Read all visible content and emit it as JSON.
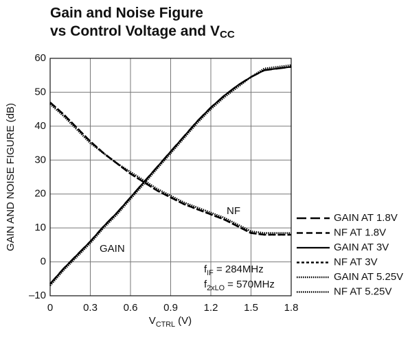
{
  "chart_data": {
    "type": "line",
    "title": "Gain and Noise Figure",
    "subtitle": {
      "text": "vs Control Voltage and V",
      "sub": "CC"
    },
    "x_label": {
      "text": "V",
      "sub": "CTRL",
      "rest": " (V)"
    },
    "y_label": "GAIN AND NOISE FIGURE (dB)",
    "annotations": [
      {
        "text": "GAIN"
      },
      {
        "text": "NF"
      },
      {
        "text": "f",
        "sub": "IF",
        "rest": " = 284MHz"
      },
      {
        "text": "f",
        "sub": "2xLO",
        "rest": " = 570MHz"
      }
    ],
    "x": [
      0,
      0.1,
      0.2,
      0.3,
      0.4,
      0.5,
      0.6,
      0.7,
      0.8,
      0.9,
      1.0,
      1.1,
      1.2,
      1.3,
      1.4,
      1.5,
      1.6,
      1.7,
      1.8
    ],
    "series": [
      {
        "name": "GAIN AT 1.8V",
        "color": "#000000",
        "style": "longdash",
        "values": [
          -6.5,
          -2,
          2,
          6,
          10.5,
          14.5,
          19,
          23.5,
          28,
          32.5,
          37,
          41.5,
          45.5,
          49,
          52,
          54.5,
          56.5,
          57,
          57.5
        ]
      },
      {
        "name": "NF AT 1.8V",
        "color": "#000000",
        "style": "dash",
        "values": [
          47,
          43.5,
          39.5,
          35.5,
          32,
          29,
          26,
          23.5,
          21,
          19,
          17,
          15.5,
          14,
          12.5,
          10.5,
          8.5,
          8,
          8,
          8
        ]
      },
      {
        "name": "GAIN AT 3V",
        "color": "#000000",
        "style": "solid",
        "values": [
          -6.5,
          -2,
          2,
          6,
          10.5,
          14.5,
          19,
          23.5,
          28,
          32.5,
          37,
          41.5,
          45.5,
          49,
          52,
          54.5,
          56.5,
          57,
          57.5
        ]
      },
      {
        "name": "NF AT 3V",
        "color": "#000000",
        "style": "shortdash",
        "values": [
          47,
          43.5,
          39.5,
          35.5,
          32,
          29,
          26,
          23.5,
          21,
          19,
          17,
          15.5,
          14,
          12.5,
          10.5,
          8.5,
          8,
          8,
          8
        ]
      },
      {
        "name": "GAIN AT 5.25V",
        "color": "#000000",
        "style": "dot",
        "values": [
          -7,
          -2.5,
          1.5,
          5.5,
          10,
          14,
          18.5,
          23,
          27.5,
          32,
          36.5,
          41,
          45,
          48.5,
          51.5,
          54.5,
          57,
          57.5,
          58
        ]
      },
      {
        "name": "NF AT 5.25V",
        "color": "#000000",
        "style": "dot",
        "values": [
          46.5,
          43,
          39,
          35,
          32,
          29,
          26.5,
          24,
          21.5,
          19.5,
          17.5,
          16,
          14.5,
          13,
          11,
          9,
          8.5,
          8.5,
          8.5
        ]
      }
    ],
    "xlim": [
      0,
      1.8
    ],
    "ylim": [
      -10,
      60
    ],
    "xticks": [
      0,
      0.3,
      0.6,
      0.9,
      1.2,
      1.5,
      1.8
    ],
    "yticks": [
      {
        "value": -10,
        "label": "–10"
      },
      0,
      10,
      20,
      30,
      40,
      50,
      60
    ],
    "grid": true,
    "legend": "right"
  }
}
